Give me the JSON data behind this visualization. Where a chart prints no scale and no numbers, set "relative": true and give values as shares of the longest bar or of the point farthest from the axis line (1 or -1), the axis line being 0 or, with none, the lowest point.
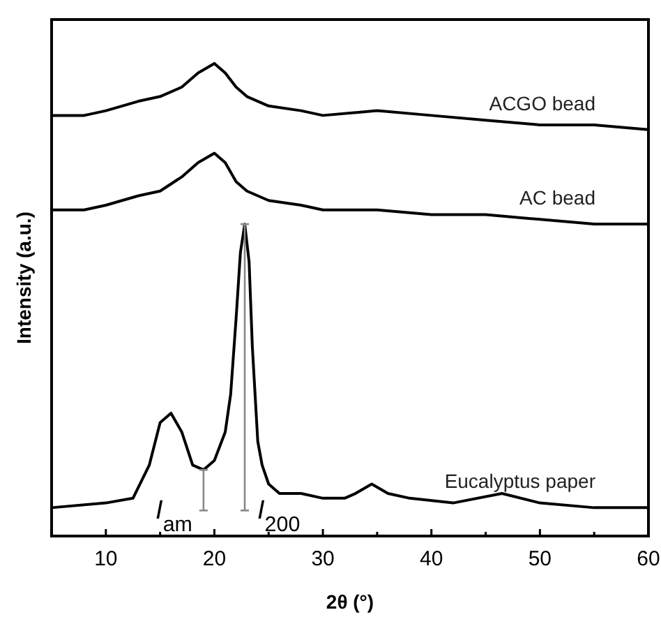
{
  "chart_data": {
    "type": "line",
    "relative": true,
    "xlabel": "2θ (°)",
    "ylabel": "Intensity (a.u.)",
    "xlim": [
      5,
      60
    ],
    "xticks": [
      {
        "value": 5,
        "label": null
      },
      10,
      {
        "value": 15,
        "label": null
      },
      20,
      {
        "value": 25,
        "label": null
      },
      30,
      {
        "value": 35,
        "label": null
      },
      40,
      {
        "value": 45,
        "label": null
      },
      50,
      {
        "value": 55,
        "label": null
      },
      60
    ],
    "legend": false,
    "grid": false,
    "marker": "none",
    "line_style": "solid",
    "series": [
      {
        "name": "ACGO bead",
        "color": "#000000",
        "x": [
          5,
          8,
          10,
          13,
          15,
          17,
          18.5,
          20,
          21,
          22,
          23,
          25,
          28,
          30,
          35,
          40,
          45,
          50,
          55,
          60
        ],
        "values": [
          0.89,
          0.89,
          0.9,
          0.92,
          0.93,
          0.95,
          0.98,
          1.0,
          0.98,
          0.95,
          0.93,
          0.91,
          0.9,
          0.89,
          0.9,
          0.89,
          0.88,
          0.87,
          0.87,
          0.86
        ]
      },
      {
        "name": "AC bead",
        "color": "#000000",
        "x": [
          5,
          8,
          10,
          13,
          15,
          17,
          18.5,
          20,
          21,
          22,
          23,
          25,
          28,
          30,
          35,
          40,
          45,
          50,
          55,
          60
        ],
        "values": [
          0.69,
          0.69,
          0.7,
          0.72,
          0.73,
          0.76,
          0.79,
          0.81,
          0.79,
          0.75,
          0.73,
          0.71,
          0.7,
          0.69,
          0.69,
          0.68,
          0.68,
          0.67,
          0.66,
          0.66
        ]
      },
      {
        "name": "Eucalyptus paper",
        "color": "#000000",
        "x": [
          5,
          10,
          12.5,
          14,
          15,
          16,
          17,
          18,
          19,
          20,
          21,
          21.5,
          22,
          22.4,
          22.8,
          23.2,
          23.5,
          24,
          24.4,
          25,
          26,
          28,
          30,
          32,
          33,
          34.5,
          36,
          38,
          42,
          46.5,
          50,
          55,
          60
        ],
        "values": [
          0.06,
          0.07,
          0.08,
          0.15,
          0.24,
          0.26,
          0.22,
          0.15,
          0.14,
          0.16,
          0.22,
          0.3,
          0.46,
          0.6,
          0.66,
          0.58,
          0.4,
          0.2,
          0.15,
          0.11,
          0.09,
          0.09,
          0.08,
          0.08,
          0.09,
          0.11,
          0.09,
          0.08,
          0.07,
          0.09,
          0.07,
          0.06,
          0.06
        ]
      }
    ],
    "annotations": [
      {
        "text": "I$_{am}$",
        "x": 19,
        "y": 0.14
      },
      {
        "text": "I$_{200}$",
        "x": 22.8,
        "y": 0.66
      }
    ]
  }
}
